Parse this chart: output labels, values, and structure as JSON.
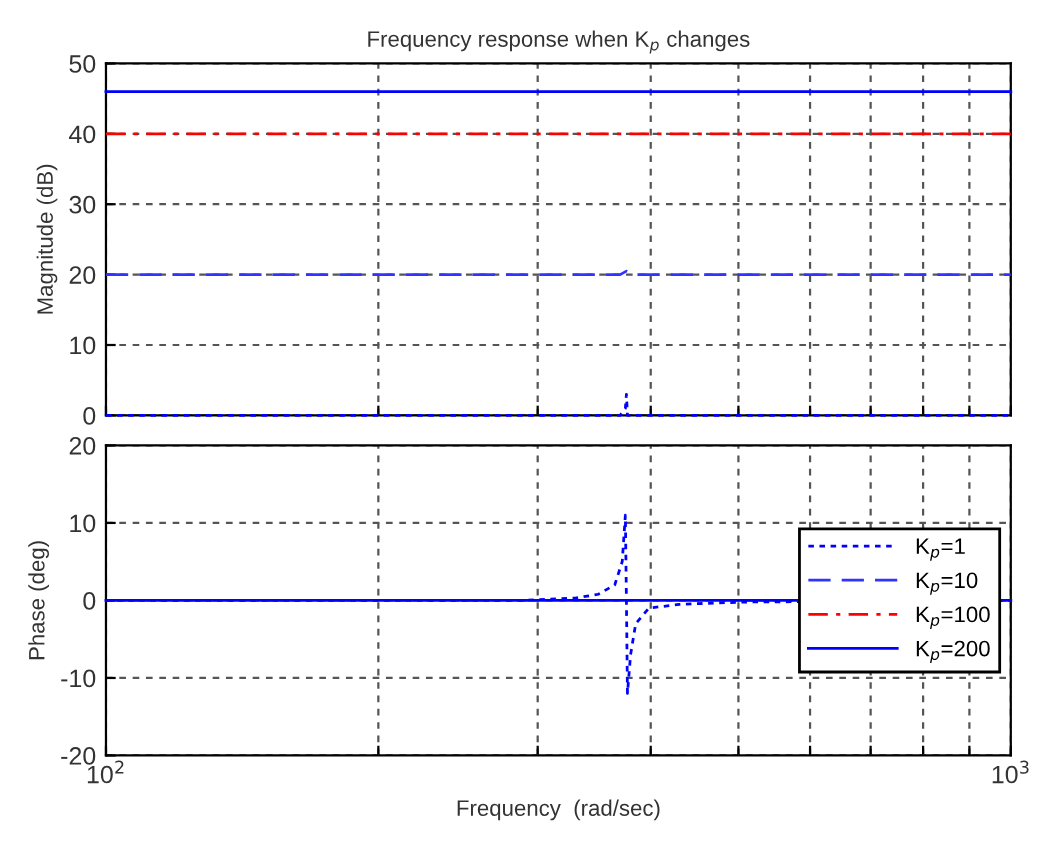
{
  "chart_data": [
    {
      "type": "line",
      "title": "Frequency response when K$_{p}$ changes",
      "ylabel": "Magnitude (dB)",
      "log": "x",
      "xlim": [
        100,
        1000
      ],
      "xticks": [
        {
          "value": 100,
          "label": null
        },
        {
          "value": 200,
          "label": null
        },
        {
          "value": 300,
          "label": null
        },
        {
          "value": 400,
          "label": null
        },
        {
          "value": 500,
          "label": null
        },
        {
          "value": 600,
          "label": null
        },
        {
          "value": 700,
          "label": null
        },
        {
          "value": 800,
          "label": null
        },
        {
          "value": 900,
          "label": null
        },
        {
          "value": 1000,
          "label": null
        }
      ],
      "ylim": [
        0,
        50
      ],
      "yticks": [
        0,
        10,
        20,
        30,
        40,
        50
      ],
      "grid": true,
      "tick_labels": "y",
      "series": [
        {
          "color": "#0000ff",
          "line_style": "dotted",
          "x": [
            100,
            370,
            375,
            376,
            377,
            380,
            1000
          ],
          "values": [
            0,
            0,
            1,
            3,
            0,
            0,
            0
          ]
        },
        {
          "color": "#3333ff",
          "line_style": "dashed",
          "x": [
            100,
            370,
            376,
            382,
            1000
          ],
          "values": [
            20,
            20,
            20.5,
            20,
            20
          ]
        },
        {
          "color": "#ff0000",
          "line_style": "dashdot",
          "x": [
            100,
            1000
          ],
          "values": [
            40,
            40
          ]
        },
        {
          "color": "#0000ff",
          "line_style": "solid",
          "x": [
            100,
            1000
          ],
          "values": [
            46,
            46
          ]
        }
      ]
    },
    {
      "type": "line",
      "xlabel": "Frequency  (rad/sec)",
      "ylabel": "Phase (deg)",
      "log": "x",
      "xlim": [
        100,
        1000
      ],
      "xticks": [
        {
          "value": 100,
          "label": "10$^{2}$"
        },
        {
          "value": 200,
          "label": null
        },
        {
          "value": 300,
          "label": null
        },
        {
          "value": 400,
          "label": null
        },
        {
          "value": 500,
          "label": null
        },
        {
          "value": 600,
          "label": null
        },
        {
          "value": 700,
          "label": null
        },
        {
          "value": 800,
          "label": null
        },
        {
          "value": 900,
          "label": null
        },
        {
          "value": 1000,
          "label": "10$^{3}$"
        }
      ],
      "ylim": [
        -20,
        20
      ],
      "yticks": [
        -20,
        -10,
        0,
        10,
        20
      ],
      "grid": true,
      "legend": "right",
      "series": [
        {
          "name": "K$_{p}$=1",
          "color": "#0000ff",
          "line_style": "dotted",
          "x": [
            100,
            286,
            330,
            350,
            365,
            372,
            375,
            376,
            377,
            380,
            385,
            398,
            430,
            509,
            1000
          ],
          "values": [
            0,
            0,
            0.3,
            0.8,
            2,
            5,
            11,
            0,
            -12,
            -7,
            -3,
            -1,
            -0.5,
            -0.2,
            0
          ]
        },
        {
          "name": "K$_{p}$=10",
          "color": "#3333ff",
          "line_style": "dashed"
        },
        {
          "name": "K$_{p}$=100",
          "color": "#ff0000",
          "line_style": "dashdot"
        },
        {
          "name": "K$_{p}$=200",
          "color": "#0000ff",
          "line_style": "solid",
          "x": [
            100,
            1000
          ],
          "values": [
            0,
            0
          ]
        }
      ]
    }
  ]
}
